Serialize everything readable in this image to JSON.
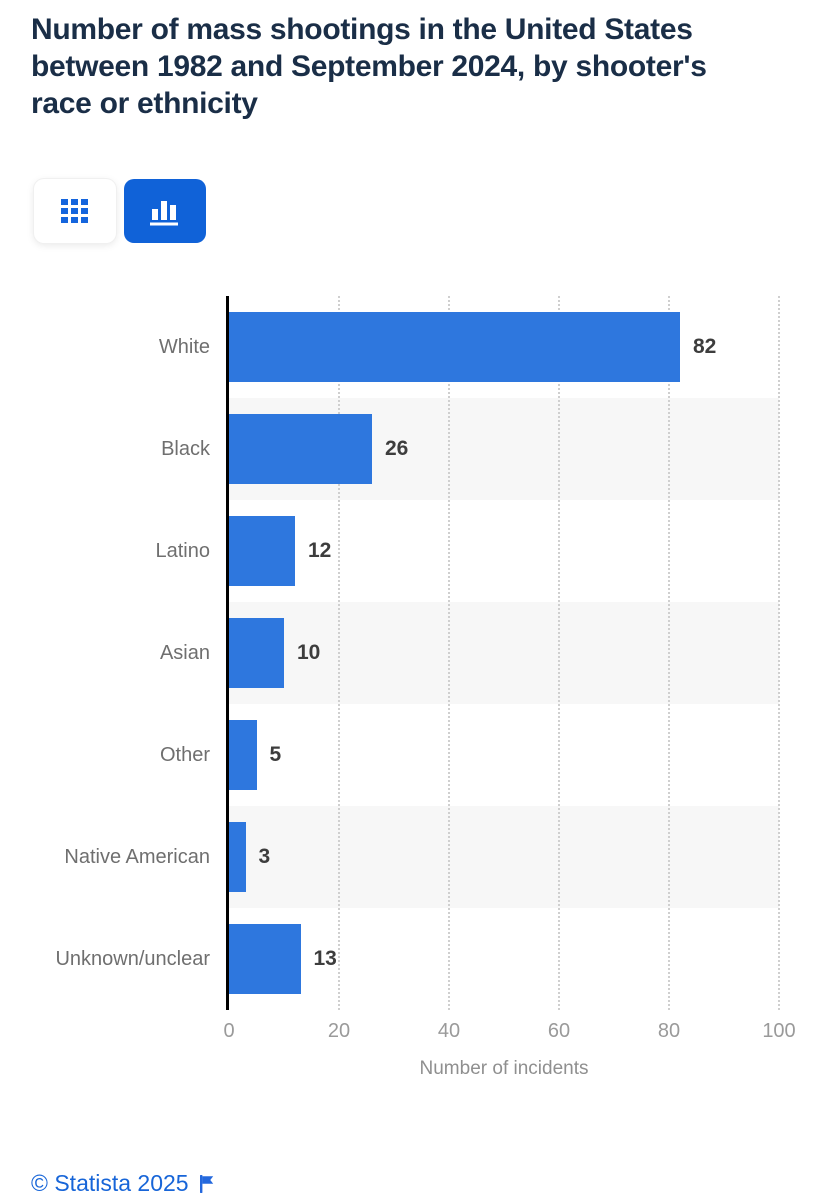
{
  "title": "Number of mass shootings in the United States between 1982 and September 2024, by shooter's race or ethnicity",
  "title_lines": [
    "Number of mass shootings in the United States",
    "between 1982 and September 2024, by shooter's",
    "race or ethnicity"
  ],
  "toolbar": {
    "buttons": [
      {
        "name": "table-view",
        "icon": "grid-icon",
        "selected": false
      },
      {
        "name": "chart-view",
        "icon": "bar-chart-icon",
        "selected": true
      }
    ]
  },
  "chart_data": {
    "type": "bar",
    "orientation": "horizontal",
    "title": "Number of mass shootings in the United States between 1982 and September 2024, by shooter's race or ethnicity",
    "categories": [
      "White",
      "Black",
      "Latino",
      "Asian",
      "Other",
      "Native American",
      "Unknown/unclear"
    ],
    "values": [
      82,
      26,
      12,
      10,
      5,
      3,
      13
    ],
    "xlabel": "Number of incidents",
    "ylabel": "",
    "xlim": [
      0,
      100
    ],
    "xticks": [
      0,
      20,
      40,
      60,
      80,
      100
    ],
    "grid": "vertical-dotted",
    "legend": "none",
    "bar_color": "#2e77de",
    "row_band_color": "#f7f7f7"
  },
  "colors": {
    "bar": "#2e77de",
    "band": "#f7f7f7",
    "gridline": "#cfcfcf",
    "axis_line": "#000000",
    "title_text": "#1a2e47",
    "category_label": "#6f6f6f",
    "value_label": "#3d3d3d",
    "tick_label": "#9a9a9a",
    "selected_button": "#1062d8",
    "icon_blue": "#1565dd",
    "footer_link": "#1765d8"
  },
  "footer": {
    "copyright": "© Statista 2025",
    "flag_icon": "flag-icon"
  }
}
